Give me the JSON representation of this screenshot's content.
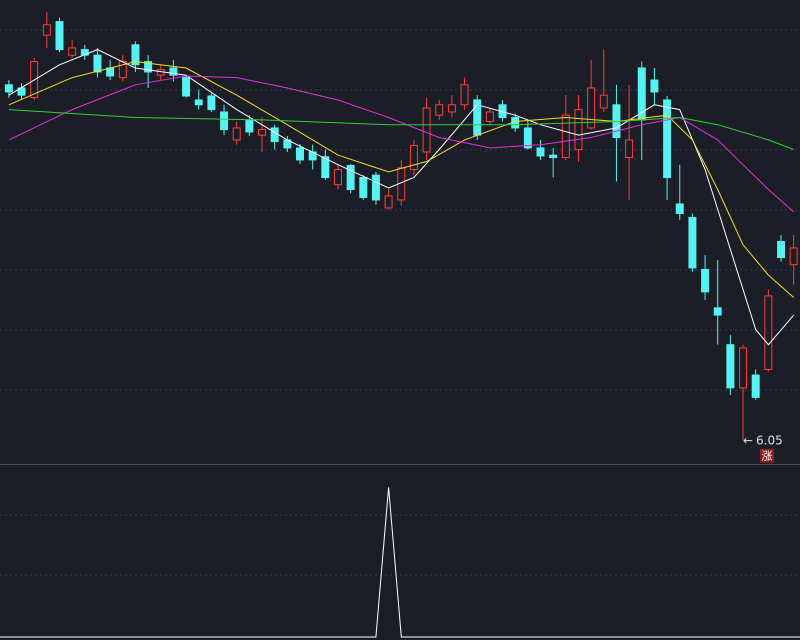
{
  "chart_data": [
    {
      "type": "candlestick",
      "xlim": [
        -0.7,
        62.5
      ],
      "ylim": [
        5.76,
        11.55
      ],
      "up_color": "#ff3c3c",
      "down_color": "#54f2f2",
      "open": [
        10.49,
        10.45,
        10.33,
        11.11,
        11.28,
        10.86,
        10.93,
        10.86,
        10.7,
        10.58,
        10.99,
        10.78,
        10.61,
        10.7,
        10.58,
        10.3,
        10.35,
        10.15,
        9.8,
        10.05,
        9.86,
        9.95,
        9.8,
        9.7,
        9.65,
        9.59,
        9.24,
        9.48,
        9.33,
        9.36,
        8.95,
        9.05,
        9.43,
        9.65,
        10.11,
        10.15,
        10.24,
        10.3,
        10.03,
        10.24,
        10.08,
        9.95,
        9.7,
        9.61,
        9.58,
        9.68,
        9.95,
        10.2,
        10.24,
        9.58,
        10.7,
        10.55,
        10.3,
        9.0,
        8.83,
        8.18,
        7.7,
        7.24,
        6.7,
        6.86,
        6.93,
        8.53,
        8.24
      ],
      "close": [
        10.4,
        10.36,
        10.78,
        11.24,
        10.93,
        10.95,
        10.86,
        10.65,
        10.6,
        10.78,
        10.74,
        10.65,
        10.68,
        10.61,
        10.35,
        10.24,
        10.18,
        9.93,
        9.95,
        9.9,
        9.93,
        9.78,
        9.7,
        9.55,
        9.55,
        9.33,
        9.43,
        9.18,
        9.08,
        9.05,
        9.1,
        9.45,
        9.73,
        10.2,
        10.24,
        10.24,
        10.49,
        9.86,
        10.15,
        10.08,
        9.95,
        9.7,
        9.6,
        9.58,
        10.11,
        10.18,
        10.45,
        10.36,
        9.83,
        9.8,
        10.05,
        10.4,
        9.33,
        8.88,
        8.2,
        7.9,
        7.61,
        6.7,
        7.2,
        6.58,
        7.85,
        8.33,
        8.45
      ],
      "high": [
        10.55,
        10.51,
        10.83,
        11.4,
        11.33,
        11.05,
        10.99,
        10.95,
        10.8,
        10.86,
        11.03,
        10.86,
        10.74,
        10.8,
        10.61,
        10.43,
        10.4,
        10.24,
        10.03,
        10.11,
        10.08,
        9.99,
        9.85,
        9.75,
        9.74,
        9.68,
        9.49,
        9.5,
        9.36,
        9.4,
        9.18,
        9.55,
        9.8,
        10.33,
        10.3,
        10.36,
        10.58,
        10.36,
        10.2,
        10.3,
        10.13,
        10.05,
        9.8,
        9.7,
        10.36,
        10.36,
        10.8,
        10.93,
        10.49,
        10.49,
        10.78,
        10.7,
        10.35,
        9.49,
        8.88,
        8.36,
        8.3,
        7.36,
        7.24,
        6.93,
        7.93,
        8.61,
        8.61
      ],
      "low": [
        10.33,
        10.3,
        10.3,
        10.95,
        10.9,
        10.83,
        10.8,
        10.58,
        10.55,
        10.53,
        10.65,
        10.45,
        10.55,
        10.53,
        10.33,
        10.18,
        10.15,
        9.86,
        9.74,
        9.85,
        9.65,
        9.68,
        9.65,
        9.5,
        9.43,
        9.3,
        9.18,
        9.13,
        9.05,
        8.99,
        8.93,
        8.98,
        9.36,
        9.55,
        10.05,
        10.08,
        10.18,
        9.8,
        9.99,
        10.03,
        9.9,
        9.68,
        9.55,
        9.33,
        9.55,
        9.53,
        9.93,
        10.15,
        9.28,
        9.05,
        9.55,
        10.24,
        9.05,
        8.8,
        8.15,
        7.8,
        7.24,
        6.61,
        6.05,
        6.55,
        6.9,
        8.28,
        7.99
      ],
      "ma": [
        {
          "color": "#ffffff",
          "x": [
            0,
            4,
            7,
            10,
            14,
            18,
            22,
            26,
            30,
            32,
            34,
            37,
            40,
            42,
            45,
            48,
            51,
            53,
            55,
            57,
            59,
            60,
            62
          ],
          "values": [
            10.36,
            10.74,
            10.93,
            10.7,
            10.61,
            10.18,
            9.8,
            9.49,
            9.2,
            9.33,
            9.68,
            10.24,
            10.11,
            9.99,
            9.86,
            9.95,
            10.24,
            10.18,
            9.43,
            8.43,
            7.43,
            7.24,
            7.61
          ]
        },
        {
          "color": "#f0e020",
          "x": [
            0,
            5,
            10,
            14,
            18,
            22,
            26,
            30,
            33,
            36,
            40,
            44,
            48,
            52,
            54,
            56,
            58,
            60,
            62
          ],
          "values": [
            10.24,
            10.58,
            10.78,
            10.7,
            10.36,
            9.99,
            9.61,
            9.4,
            9.53,
            9.8,
            10.03,
            10.08,
            10.03,
            10.11,
            9.8,
            9.18,
            8.49,
            8.11,
            7.83
          ]
        },
        {
          "color": "#e030e0",
          "x": [
            0,
            5,
            10,
            14,
            18,
            22,
            26,
            30,
            34,
            38,
            42,
            46,
            50,
            53,
            56,
            58,
            60,
            62
          ],
          "values": [
            9.8,
            10.18,
            10.49,
            10.6,
            10.58,
            10.45,
            10.3,
            10.08,
            9.83,
            9.7,
            9.74,
            9.83,
            9.99,
            10.08,
            9.8,
            9.49,
            9.18,
            8.9
          ]
        },
        {
          "color": "#30d030",
          "x": [
            0,
            10,
            20,
            30,
            40,
            48,
            53,
            56,
            60,
            62
          ],
          "values": [
            10.18,
            10.08,
            10.05,
            9.99,
            9.99,
            10.03,
            10.08,
            9.99,
            9.8,
            9.68
          ]
        }
      ]
    },
    {
      "type": "line",
      "xlim": [
        -0.7,
        62.5
      ],
      "ylim": [
        0,
        1.15
      ],
      "color": "#ffffff",
      "values": [
        0,
        0,
        0,
        0,
        0,
        0,
        0,
        0,
        0,
        0,
        0,
        0,
        0,
        0,
        0,
        0,
        0,
        0,
        0,
        0,
        0,
        0,
        0,
        0,
        0,
        0,
        0,
        0,
        0,
        0,
        1,
        0,
        0,
        0,
        0,
        0,
        0,
        0,
        0,
        0,
        0,
        0,
        0,
        0,
        0,
        0,
        0,
        0,
        0,
        0,
        0,
        0,
        0,
        0,
        0,
        0,
        0,
        0,
        0,
        0,
        0,
        0,
        0
      ]
    }
  ],
  "badge": "涨"
}
